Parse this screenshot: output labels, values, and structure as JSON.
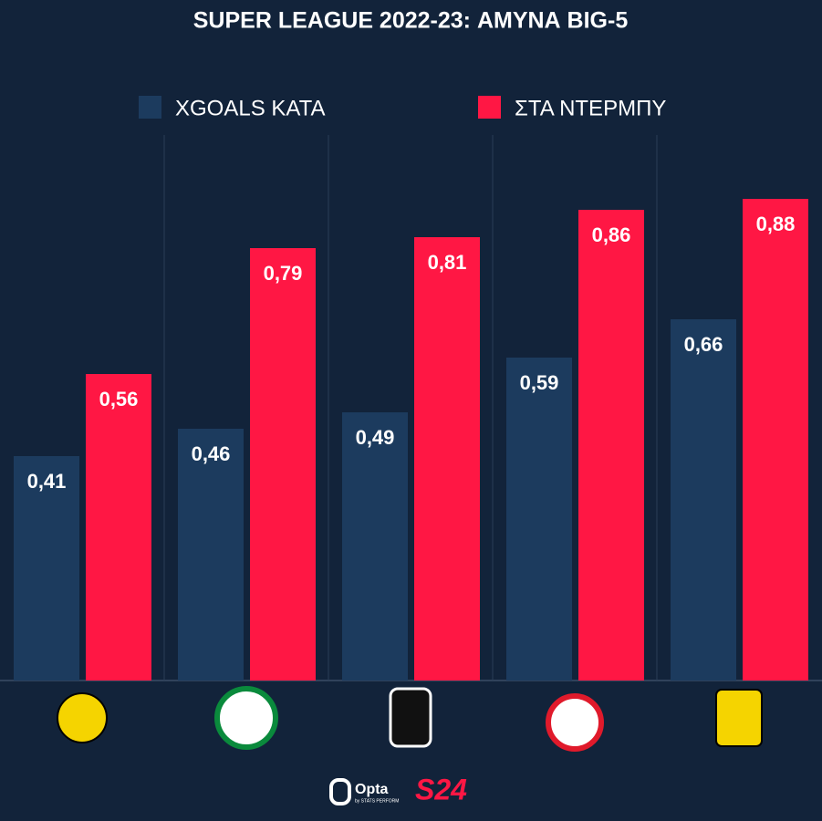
{
  "chart_data": {
    "type": "bar",
    "title": "SUPER LEAGUE 2022-23: ΑΜΥΝΑ BIG-5",
    "categories": [
      null,
      null,
      null,
      null,
      null
    ],
    "series": [
      {
        "name": "XGOALS ΚΑΤΑ",
        "color": "#1c3b5e",
        "values": [
          0.41,
          0.46,
          0.49,
          0.59,
          0.66
        ],
        "value_labels": [
          "0,41",
          "0,46",
          "0,49",
          "0,59",
          "0,66"
        ]
      },
      {
        "name": "ΣΤΑ ΝΤΕΡΜΠΥ",
        "color": "#ff1744",
        "values": [
          0.56,
          0.79,
          0.81,
          0.86,
          0.88
        ],
        "value_labels": [
          "0,56",
          "0,79",
          "0,81",
          "0,86",
          "0,88"
        ]
      }
    ]
  },
  "footer": {
    "brand": "Opta",
    "sub": "by STATS PERFORM",
    "site": "S24"
  }
}
